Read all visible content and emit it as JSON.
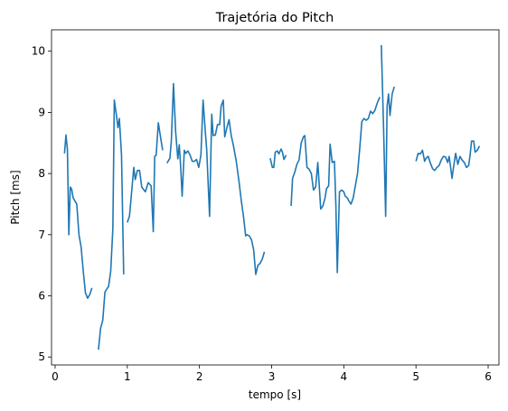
{
  "chart_data": {
    "type": "line",
    "title": "Trajetória do Pitch",
    "xlabel": "tempo [s]",
    "ylabel": "Pitch [ms]",
    "xlim": [
      -0.05,
      6.15
    ],
    "ylim": [
      4.87,
      10.35
    ],
    "xticks": [
      0,
      1,
      2,
      3,
      4,
      5,
      6
    ],
    "yticks": [
      5,
      6,
      7,
      8,
      9,
      10
    ],
    "grid": false,
    "color": "#1f77b4",
    "series": [
      {
        "segments": [
          [
            [
              0.13,
              8.33
            ],
            [
              0.15,
              8.63
            ],
            [
              0.17,
              8.4
            ],
            [
              0.19,
              7.0
            ],
            [
              0.21,
              7.78
            ],
            [
              0.23,
              7.74
            ],
            [
              0.25,
              7.6
            ],
            [
              0.3,
              7.5
            ],
            [
              0.33,
              7.0
            ],
            [
              0.36,
              6.8
            ],
            [
              0.39,
              6.4
            ],
            [
              0.42,
              6.05
            ],
            [
              0.45,
              5.96
            ],
            [
              0.48,
              6.02
            ],
            [
              0.51,
              6.13
            ]
          ],
          [
            [
              0.6,
              5.12
            ],
            [
              0.63,
              5.47
            ],
            [
              0.66,
              5.6
            ],
            [
              0.69,
              6.06
            ],
            [
              0.72,
              6.12
            ],
            [
              0.74,
              6.15
            ],
            [
              0.77,
              6.4
            ],
            [
              0.8,
              7.1
            ],
            [
              0.82,
              9.2
            ],
            [
              0.85,
              8.95
            ],
            [
              0.87,
              8.75
            ],
            [
              0.89,
              8.9
            ],
            [
              0.92,
              8.3
            ],
            [
              0.95,
              6.35
            ]
          ],
          [
            [
              1.0,
              7.2
            ],
            [
              1.03,
              7.3
            ],
            [
              1.06,
              7.7
            ],
            [
              1.09,
              8.1
            ],
            [
              1.11,
              7.9
            ],
            [
              1.14,
              8.05
            ],
            [
              1.17,
              8.05
            ],
            [
              1.2,
              7.78
            ],
            [
              1.25,
              7.7
            ],
            [
              1.29,
              7.85
            ],
            [
              1.33,
              7.8
            ],
            [
              1.36,
              7.05
            ],
            [
              1.38,
              8.28
            ],
            [
              1.4,
              8.3
            ],
            [
              1.43,
              8.83
            ],
            [
              1.46,
              8.6
            ],
            [
              1.49,
              8.38
            ]
          ],
          [
            [
              1.55,
              8.17
            ],
            [
              1.59,
              8.25
            ],
            [
              1.61,
              8.53
            ],
            [
              1.64,
              9.47
            ],
            [
              1.67,
              8.68
            ],
            [
              1.7,
              8.24
            ],
            [
              1.72,
              8.47
            ],
            [
              1.74,
              8.1
            ],
            [
              1.76,
              7.63
            ],
            [
              1.79,
              8.38
            ],
            [
              1.81,
              8.33
            ],
            [
              1.84,
              8.37
            ],
            [
              1.87,
              8.3
            ],
            [
              1.9,
              8.2
            ],
            [
              1.93,
              8.2
            ],
            [
              1.96,
              8.23
            ],
            [
              1.99,
              8.1
            ],
            [
              2.02,
              8.3
            ],
            [
              2.05,
              9.2
            ],
            [
              2.08,
              8.7
            ],
            [
              2.1,
              8.4
            ],
            [
              2.14,
              7.3
            ],
            [
              2.17,
              8.97
            ],
            [
              2.19,
              8.62
            ],
            [
              2.22,
              8.63
            ],
            [
              2.25,
              8.8
            ],
            [
              2.28,
              8.8
            ],
            [
              2.3,
              9.1
            ],
            [
              2.33,
              9.2
            ],
            [
              2.35,
              8.6
            ],
            [
              2.38,
              8.75
            ],
            [
              2.41,
              8.88
            ],
            [
              2.44,
              8.62
            ],
            [
              2.47,
              8.46
            ],
            [
              2.51,
              8.2
            ],
            [
              2.55,
              7.85
            ],
            [
              2.58,
              7.55
            ],
            [
              2.61,
              7.3
            ],
            [
              2.64,
              6.98
            ],
            [
              2.66,
              7.0
            ],
            [
              2.69,
              6.98
            ],
            [
              2.72,
              6.92
            ],
            [
              2.75,
              6.76
            ],
            [
              2.78,
              6.35
            ],
            [
              2.81,
              6.5
            ],
            [
              2.84,
              6.53
            ],
            [
              2.87,
              6.6
            ],
            [
              2.9,
              6.72
            ]
          ]
        ]
      },
      {
        "segments": [
          [
            [
              2.98,
              8.25
            ],
            [
              3.01,
              8.1
            ],
            [
              3.03,
              8.1
            ],
            [
              3.05,
              8.35
            ],
            [
              3.08,
              8.37
            ],
            [
              3.1,
              8.32
            ],
            [
              3.13,
              8.4
            ],
            [
              3.15,
              8.35
            ],
            [
              3.17,
              8.23
            ],
            [
              3.2,
              8.3
            ]
          ],
          [
            [
              3.27,
              7.47
            ],
            [
              3.29,
              7.92
            ],
            [
              3.32,
              8.02
            ],
            [
              3.35,
              8.15
            ],
            [
              3.38,
              8.22
            ],
            [
              3.41,
              8.5
            ],
            [
              3.44,
              8.6
            ],
            [
              3.46,
              8.62
            ],
            [
              3.49,
              8.1
            ],
            [
              3.52,
              8.07
            ],
            [
              3.55,
              8.0
            ],
            [
              3.58,
              7.73
            ],
            [
              3.61,
              7.78
            ],
            [
              3.64,
              8.18
            ],
            [
              3.66,
              7.8
            ],
            [
              3.68,
              7.42
            ],
            [
              3.71,
              7.47
            ],
            [
              3.74,
              7.6
            ],
            [
              3.76,
              7.75
            ],
            [
              3.79,
              7.8
            ],
            [
              3.81,
              8.48
            ],
            [
              3.84,
              8.18
            ],
            [
              3.87,
              8.2
            ],
            [
              3.89,
              7.5
            ],
            [
              3.91,
              6.38
            ],
            [
              3.94,
              7.7
            ],
            [
              3.97,
              7.73
            ],
            [
              4.0,
              7.7
            ],
            [
              4.02,
              7.63
            ],
            [
              4.05,
              7.6
            ],
            [
              4.07,
              7.55
            ],
            [
              4.1,
              7.5
            ],
            [
              4.13,
              7.6
            ],
            [
              4.16,
              7.8
            ],
            [
              4.19,
              8.0
            ],
            [
              4.22,
              8.4
            ],
            [
              4.25,
              8.85
            ],
            [
              4.28,
              8.9
            ],
            [
              4.31,
              8.87
            ],
            [
              4.34,
              8.9
            ],
            [
              4.37,
              9.02
            ],
            [
              4.4,
              8.98
            ],
            [
              4.43,
              9.03
            ],
            [
              4.46,
              9.14
            ],
            [
              4.48,
              9.2
            ],
            [
              4.5,
              9.25
            ]
          ],
          [
            [
              4.52,
              10.1
            ],
            [
              4.55,
              8.8
            ],
            [
              4.58,
              7.3
            ],
            [
              4.6,
              9.1
            ],
            [
              4.62,
              9.3
            ],
            [
              4.64,
              8.95
            ],
            [
              4.67,
              9.3
            ],
            [
              4.7,
              9.42
            ]
          ]
        ]
      },
      {
        "segments": [
          [
            [
              5.0,
              8.2
            ],
            [
              5.03,
              8.33
            ],
            [
              5.06,
              8.32
            ],
            [
              5.09,
              8.38
            ],
            [
              5.12,
              8.2
            ],
            [
              5.14,
              8.25
            ],
            [
              5.17,
              8.28
            ],
            [
              5.2,
              8.17
            ],
            [
              5.23,
              8.08
            ],
            [
              5.26,
              8.05
            ],
            [
              5.29,
              8.1
            ],
            [
              5.32,
              8.13
            ],
            [
              5.35,
              8.22
            ],
            [
              5.38,
              8.28
            ],
            [
              5.41,
              8.27
            ],
            [
              5.44,
              8.18
            ],
            [
              5.46,
              8.28
            ],
            [
              5.48,
              8.1
            ],
            [
              5.5,
              7.92
            ],
            [
              5.52,
              8.1
            ],
            [
              5.55,
              8.33
            ],
            [
              5.58,
              8.15
            ],
            [
              5.61,
              8.28
            ],
            [
              5.64,
              8.22
            ],
            [
              5.67,
              8.18
            ],
            [
              5.7,
              8.1
            ],
            [
              5.73,
              8.13
            ],
            [
              5.75,
              8.3
            ],
            [
              5.77,
              8.53
            ],
            [
              5.8,
              8.53
            ],
            [
              5.82,
              8.35
            ],
            [
              5.85,
              8.38
            ],
            [
              5.88,
              8.45
            ]
          ]
        ]
      }
    ]
  }
}
